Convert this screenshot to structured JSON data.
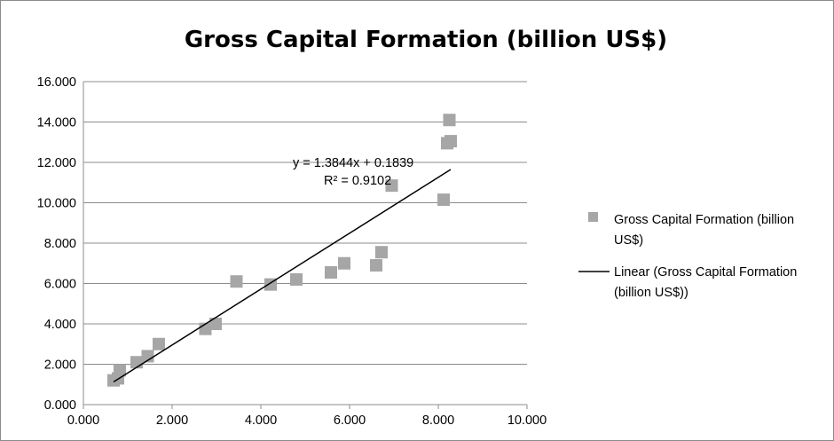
{
  "chart_data": {
    "type": "scatter",
    "title": "Gross Capital Formation (billion US$)",
    "xlim": [
      0,
      10
    ],
    "ylim": [
      0,
      16
    ],
    "x_ticks": [
      "0.000",
      "2.000",
      "4.000",
      "6.000",
      "8.000",
      "10.000"
    ],
    "y_ticks": [
      "0.000",
      "2.000",
      "4.000",
      "6.000",
      "8.000",
      "10.000",
      "12.000",
      "14.000",
      "16.000"
    ],
    "grid": "horizontal",
    "legend_position": "right",
    "series": [
      {
        "name": "Gross Capital Formation (billion US$)",
        "marker": "square",
        "color": "#a6a6a6",
        "points": [
          [
            0.68,
            1.2
          ],
          [
            0.78,
            1.3
          ],
          [
            0.82,
            1.7
          ],
          [
            1.2,
            2.1
          ],
          [
            1.45,
            2.4
          ],
          [
            1.7,
            3.0
          ],
          [
            2.75,
            3.75
          ],
          [
            2.98,
            4.0
          ],
          [
            3.45,
            6.1
          ],
          [
            4.22,
            5.95
          ],
          [
            4.8,
            6.2
          ],
          [
            5.58,
            6.55
          ],
          [
            5.88,
            7.0
          ],
          [
            6.6,
            6.9
          ],
          [
            6.72,
            7.55
          ],
          [
            6.95,
            10.85
          ],
          [
            8.12,
            10.15
          ],
          [
            8.2,
            12.95
          ],
          [
            8.28,
            13.05
          ],
          [
            8.25,
            14.1
          ]
        ]
      }
    ],
    "trendline": {
      "name": "Linear (Gross Capital Formation (billion US$))",
      "slope": 1.3844,
      "intercept": 0.1839,
      "x_range": [
        0.68,
        8.28
      ],
      "equation_text": "y = 1.3844x + 0.1839",
      "r2_text": "R² = 0.9102",
      "color": "#000000"
    }
  },
  "legend": {
    "marker_line1": "Gross Capital Formation (billion",
    "marker_line2": "US$)",
    "trend_line1": "Linear (Gross Capital Formation",
    "trend_line2": "(billion US$))"
  }
}
